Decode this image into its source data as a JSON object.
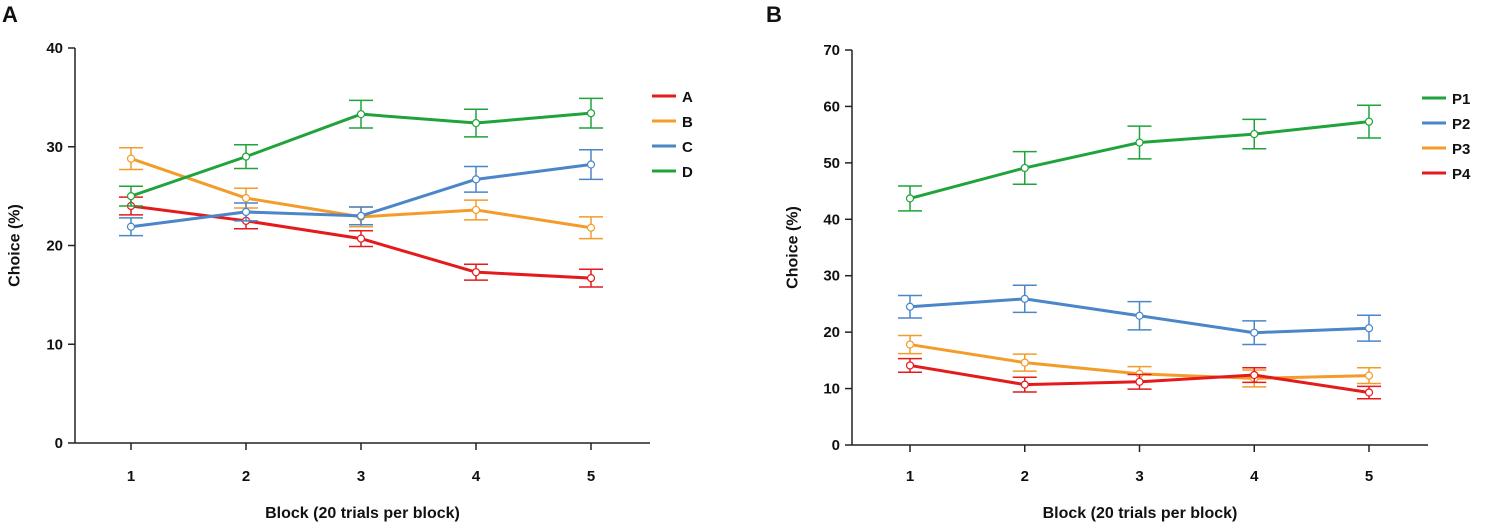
{
  "chart_data": [
    {
      "type": "line",
      "panel_label": "A",
      "title": "",
      "xlabel": "Block (20 trials per block)",
      "ylabel": "Choice (%)",
      "x": [
        1,
        2,
        3,
        4,
        5
      ],
      "xlim": [
        0.5,
        5.5
      ],
      "ylim": [
        0,
        40
      ],
      "yticks": [
        0,
        10,
        20,
        30,
        40
      ],
      "legend_placement": "top-right",
      "series": [
        {
          "name": "A",
          "color": "#e41a1c",
          "values": [
            24.0,
            22.5,
            20.7,
            17.3,
            16.7
          ],
          "errors": [
            0.9,
            0.8,
            0.8,
            0.8,
            0.9
          ]
        },
        {
          "name": "B",
          "color": "#f39c2a",
          "values": [
            28.8,
            24.8,
            22.9,
            23.6,
            21.8
          ],
          "errors": [
            1.1,
            1.0,
            1.0,
            1.0,
            1.1
          ]
        },
        {
          "name": "C",
          "color": "#4a86c8",
          "values": [
            21.9,
            23.4,
            23.0,
            26.7,
            28.2
          ],
          "errors": [
            0.9,
            0.9,
            0.9,
            1.3,
            1.5
          ]
        },
        {
          "name": "D",
          "color": "#1fa33a",
          "values": [
            25.0,
            29.0,
            33.3,
            32.4,
            33.4
          ],
          "errors": [
            1.0,
            1.2,
            1.4,
            1.4,
            1.5
          ]
        }
      ]
    },
    {
      "type": "line",
      "panel_label": "B",
      "title": "",
      "xlabel": "Block (20 trials per block)",
      "ylabel": "Choice (%)",
      "x": [
        1,
        2,
        3,
        4,
        5
      ],
      "xlim": [
        0.5,
        5.5
      ],
      "ylim": [
        0,
        70
      ],
      "yticks": [
        0,
        10,
        20,
        30,
        40,
        50,
        60,
        70
      ],
      "legend_placement": "top-right",
      "series": [
        {
          "name": "P1",
          "color": "#1fa33a",
          "values": [
            43.7,
            49.1,
            53.6,
            55.1,
            57.3
          ],
          "errors": [
            2.2,
            2.9,
            2.9,
            2.6,
            2.9
          ]
        },
        {
          "name": "P2",
          "color": "#4a86c8",
          "values": [
            24.5,
            25.9,
            22.9,
            19.9,
            20.7
          ],
          "errors": [
            2.0,
            2.4,
            2.5,
            2.1,
            2.3
          ]
        },
        {
          "name": "P3",
          "color": "#f39c2a",
          "values": [
            17.8,
            14.6,
            12.6,
            11.8,
            12.3
          ],
          "errors": [
            1.6,
            1.5,
            1.3,
            1.5,
            1.4
          ]
        },
        {
          "name": "P4",
          "color": "#e41a1c",
          "values": [
            14.1,
            10.7,
            11.2,
            12.4,
            9.3
          ],
          "errors": [
            1.2,
            1.3,
            1.3,
            1.3,
            1.1
          ]
        }
      ]
    }
  ]
}
